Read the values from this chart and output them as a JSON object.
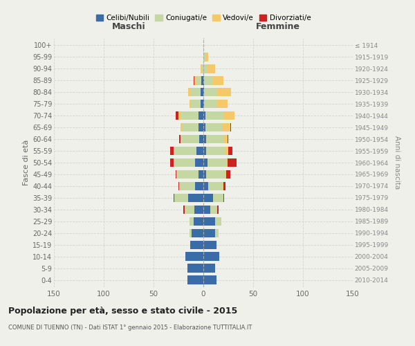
{
  "age_groups": [
    "0-4",
    "5-9",
    "10-14",
    "15-19",
    "20-24",
    "25-29",
    "30-34",
    "35-39",
    "40-44",
    "45-49",
    "50-54",
    "55-59",
    "60-64",
    "65-69",
    "70-74",
    "75-79",
    "80-84",
    "85-89",
    "90-94",
    "95-99",
    "100+"
  ],
  "birth_years": [
    "2010-2014",
    "2005-2009",
    "2000-2004",
    "1995-1999",
    "1990-1994",
    "1985-1989",
    "1980-1984",
    "1975-1979",
    "1970-1974",
    "1965-1969",
    "1960-1964",
    "1955-1959",
    "1950-1954",
    "1945-1949",
    "1940-1944",
    "1935-1939",
    "1930-1934",
    "1925-1929",
    "1920-1924",
    "1915-1919",
    "≤ 1914"
  ],
  "colors": {
    "celibe": "#3a6ca8",
    "coniugato": "#c5d8a4",
    "vedovo": "#f5c96a",
    "divorziato": "#cc2222"
  },
  "maschi": {
    "celibe": [
      16,
      16,
      18,
      13,
      12,
      10,
      9,
      15,
      8,
      5,
      8,
      7,
      4,
      5,
      5,
      3,
      3,
      2,
      0,
      0,
      0
    ],
    "coniugato": [
      0,
      0,
      0,
      0,
      2,
      4,
      10,
      14,
      16,
      22,
      22,
      22,
      18,
      16,
      17,
      10,
      10,
      5,
      2,
      0,
      0
    ],
    "vedovo": [
      0,
      0,
      0,
      0,
      0,
      0,
      0,
      0,
      0,
      0,
      0,
      1,
      1,
      2,
      3,
      1,
      2,
      2,
      1,
      0,
      0
    ],
    "divorziato": [
      0,
      0,
      0,
      0,
      0,
      0,
      1,
      1,
      1,
      1,
      3,
      3,
      1,
      0,
      3,
      0,
      0,
      1,
      0,
      0,
      0
    ]
  },
  "femmine": {
    "nubile": [
      13,
      12,
      16,
      13,
      12,
      12,
      7,
      10,
      5,
      3,
      4,
      3,
      3,
      2,
      2,
      1,
      1,
      1,
      0,
      0,
      0
    ],
    "coniugata": [
      0,
      0,
      0,
      0,
      3,
      6,
      7,
      10,
      14,
      19,
      19,
      19,
      17,
      17,
      18,
      13,
      13,
      9,
      4,
      2,
      0
    ],
    "vedova": [
      0,
      0,
      0,
      0,
      0,
      0,
      0,
      0,
      1,
      1,
      1,
      3,
      4,
      8,
      11,
      10,
      14,
      10,
      8,
      3,
      0
    ],
    "divorziata": [
      0,
      0,
      0,
      0,
      0,
      0,
      1,
      1,
      2,
      4,
      9,
      4,
      1,
      1,
      0,
      0,
      0,
      0,
      0,
      0,
      0
    ]
  },
  "title": "Popolazione per età, sesso e stato civile - 2015",
  "subtitle": "COMUNE DI TUENNO (TN) - Dati ISTAT 1° gennaio 2015 - Elaborazione TUTTITALIA.IT",
  "xlabel_left": "Maschi",
  "xlabel_right": "Femmine",
  "ylabel_left": "Fasce di età",
  "ylabel_right": "Anni di nascita",
  "xlim": 150,
  "background_color": "#f0f0eb",
  "grid_color": "#cccccc",
  "bar_height": 0.75
}
